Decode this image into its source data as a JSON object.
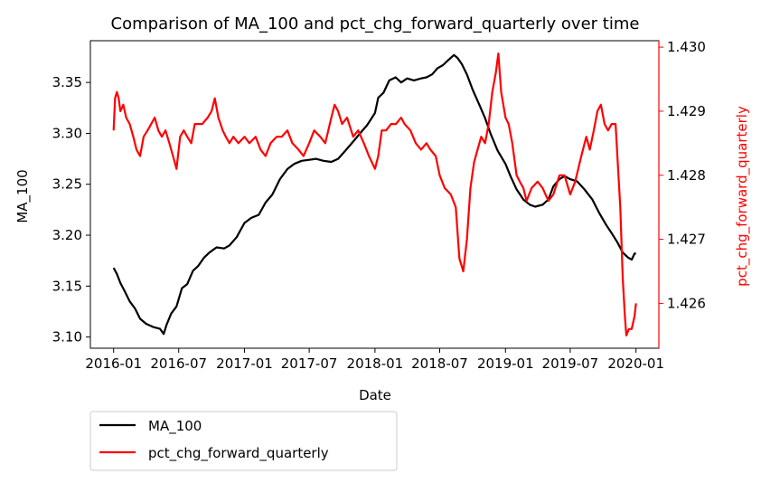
{
  "chart_data": {
    "type": "line",
    "title": "Comparison of MA_100 and pct_chg_forward_quarterly over time",
    "xlabel": "Date",
    "ylabel": "MA_100",
    "y2label": "pct_chg_forward_quarterly",
    "xlim": [
      "2015-10-28",
      "2020-03-05"
    ],
    "ylim": [
      3.089,
      3.391
    ],
    "y2lim": [
      1.4253,
      1.4301
    ],
    "x_ticks": [
      "2016-01",
      "2016-07",
      "2017-01",
      "2017-07",
      "2018-01",
      "2018-07",
      "2019-01",
      "2019-07",
      "2020-01"
    ],
    "y_ticks": [
      "3.10",
      "3.15",
      "3.20",
      "3.25",
      "3.30",
      "3.35"
    ],
    "y2_ticks": [
      "1.426",
      "1.427",
      "1.428",
      "1.429",
      "1.430"
    ],
    "legend_position": "below-left",
    "grid": false,
    "colors": {
      "ma_100": "#000000",
      "pct": "#ff0000"
    },
    "series": [
      {
        "name": "MA_100",
        "axis": "left",
        "color": "#000000",
        "points": [
          [
            "2016-01-01",
            3.168
          ],
          [
            "2016-01-10",
            3.162
          ],
          [
            "2016-01-20",
            3.153
          ],
          [
            "2016-02-01",
            3.145
          ],
          [
            "2016-02-15",
            3.135
          ],
          [
            "2016-03-01",
            3.128
          ],
          [
            "2016-03-15",
            3.118
          ],
          [
            "2016-04-01",
            3.113
          ],
          [
            "2016-04-20",
            3.11
          ],
          [
            "2016-05-10",
            3.108
          ],
          [
            "2016-05-20",
            3.103
          ],
          [
            "2016-05-28",
            3.112
          ],
          [
            "2016-06-10",
            3.123
          ],
          [
            "2016-06-25",
            3.13
          ],
          [
            "2016-07-10",
            3.148
          ],
          [
            "2016-07-25",
            3.152
          ],
          [
            "2016-08-10",
            3.165
          ],
          [
            "2016-08-25",
            3.17
          ],
          [
            "2016-09-10",
            3.178
          ],
          [
            "2016-09-25",
            3.183
          ],
          [
            "2016-10-15",
            3.188
          ],
          [
            "2016-11-05",
            3.187
          ],
          [
            "2016-11-20",
            3.19
          ],
          [
            "2016-12-10",
            3.198
          ],
          [
            "2017-01-01",
            3.212
          ],
          [
            "2017-01-20",
            3.217
          ],
          [
            "2017-02-10",
            3.22
          ],
          [
            "2017-03-01",
            3.232
          ],
          [
            "2017-03-20",
            3.24
          ],
          [
            "2017-04-10",
            3.255
          ],
          [
            "2017-05-01",
            3.265
          ],
          [
            "2017-05-20",
            3.27
          ],
          [
            "2017-06-10",
            3.273
          ],
          [
            "2017-07-01",
            3.274
          ],
          [
            "2017-07-20",
            3.275
          ],
          [
            "2017-08-10",
            3.273
          ],
          [
            "2017-09-01",
            3.272
          ],
          [
            "2017-09-20",
            3.275
          ],
          [
            "2017-10-10",
            3.283
          ],
          [
            "2017-11-01",
            3.292
          ],
          [
            "2017-11-20",
            3.3
          ],
          [
            "2017-12-10",
            3.308
          ],
          [
            "2018-01-01",
            3.32
          ],
          [
            "2018-01-10",
            3.335
          ],
          [
            "2018-01-25",
            3.34
          ],
          [
            "2018-02-10",
            3.352
          ],
          [
            "2018-02-28",
            3.355
          ],
          [
            "2018-03-15",
            3.35
          ],
          [
            "2018-04-01",
            3.354
          ],
          [
            "2018-04-20",
            3.352
          ],
          [
            "2018-05-10",
            3.354
          ],
          [
            "2018-05-25",
            3.355
          ],
          [
            "2018-06-10",
            3.358
          ],
          [
            "2018-06-25",
            3.364
          ],
          [
            "2018-07-10",
            3.367
          ],
          [
            "2018-07-25",
            3.372
          ],
          [
            "2018-08-10",
            3.377
          ],
          [
            "2018-08-20",
            3.374
          ],
          [
            "2018-09-01",
            3.368
          ],
          [
            "2018-09-15",
            3.358
          ],
          [
            "2018-10-01",
            3.343
          ],
          [
            "2018-10-20",
            3.328
          ],
          [
            "2018-11-05",
            3.315
          ],
          [
            "2018-11-20",
            3.3
          ],
          [
            "2018-12-10",
            3.283
          ],
          [
            "2019-01-01",
            3.27
          ],
          [
            "2019-01-15",
            3.258
          ],
          [
            "2019-02-01",
            3.245
          ],
          [
            "2019-02-20",
            3.235
          ],
          [
            "2019-03-10",
            3.23
          ],
          [
            "2019-03-25",
            3.228
          ],
          [
            "2019-04-15",
            3.23
          ],
          [
            "2019-05-01",
            3.235
          ],
          [
            "2019-05-15",
            3.248
          ],
          [
            "2019-06-01",
            3.255
          ],
          [
            "2019-06-15",
            3.258
          ],
          [
            "2019-07-01",
            3.255
          ],
          [
            "2019-07-20",
            3.253
          ],
          [
            "2019-08-10",
            3.245
          ],
          [
            "2019-09-01",
            3.235
          ],
          [
            "2019-09-20",
            3.222
          ],
          [
            "2019-10-10",
            3.21
          ],
          [
            "2019-10-25",
            3.202
          ],
          [
            "2019-11-10",
            3.193
          ],
          [
            "2019-11-25",
            3.183
          ],
          [
            "2019-12-10",
            3.178
          ],
          [
            "2019-12-20",
            3.176
          ],
          [
            "2019-12-28",
            3.182
          ],
          [
            "2020-01-01",
            3.182
          ]
        ]
      },
      {
        "name": "pct_chg_forward_quarterly",
        "axis": "right",
        "color": "#ff0000",
        "points": [
          [
            "2016-01-01",
            1.4287
          ],
          [
            "2016-01-05",
            1.4292
          ],
          [
            "2016-01-10",
            1.4293
          ],
          [
            "2016-01-15",
            1.4292
          ],
          [
            "2016-01-20",
            1.429
          ],
          [
            "2016-01-28",
            1.4291
          ],
          [
            "2016-02-05",
            1.4289
          ],
          [
            "2016-02-15",
            1.4288
          ],
          [
            "2016-02-25",
            1.4286
          ],
          [
            "2016-03-05",
            1.4284
          ],
          [
            "2016-03-15",
            1.4283
          ],
          [
            "2016-03-25",
            1.4286
          ],
          [
            "2016-04-05",
            1.4287
          ],
          [
            "2016-04-15",
            1.4288
          ],
          [
            "2016-04-25",
            1.4289
          ],
          [
            "2016-05-05",
            1.4287
          ],
          [
            "2016-05-15",
            1.4286
          ],
          [
            "2016-05-25",
            1.4287
          ],
          [
            "2016-06-05",
            1.4285
          ],
          [
            "2016-06-15",
            1.4283
          ],
          [
            "2016-06-25",
            1.4281
          ],
          [
            "2016-07-05",
            1.4286
          ],
          [
            "2016-07-15",
            1.4287
          ],
          [
            "2016-07-25",
            1.4286
          ],
          [
            "2016-08-05",
            1.4285
          ],
          [
            "2016-08-15",
            1.4288
          ],
          [
            "2016-08-25",
            1.4288
          ],
          [
            "2016-09-05",
            1.4288
          ],
          [
            "2016-09-20",
            1.4289
          ],
          [
            "2016-10-01",
            1.429
          ],
          [
            "2016-10-10",
            1.4292
          ],
          [
            "2016-10-20",
            1.4289
          ],
          [
            "2016-11-01",
            1.4287
          ],
          [
            "2016-11-10",
            1.4286
          ],
          [
            "2016-11-20",
            1.4285
          ],
          [
            "2016-12-01",
            1.4286
          ],
          [
            "2016-12-15",
            1.4285
          ],
          [
            "2017-01-01",
            1.4286
          ],
          [
            "2017-01-15",
            1.4285
          ],
          [
            "2017-02-01",
            1.4286
          ],
          [
            "2017-02-15",
            1.4284
          ],
          [
            "2017-03-01",
            1.4283
          ],
          [
            "2017-03-15",
            1.4285
          ],
          [
            "2017-04-01",
            1.4286
          ],
          [
            "2017-04-15",
            1.4286
          ],
          [
            "2017-05-01",
            1.4287
          ],
          [
            "2017-05-15",
            1.4285
          ],
          [
            "2017-06-01",
            1.4284
          ],
          [
            "2017-06-15",
            1.4283
          ],
          [
            "2017-07-01",
            1.4285
          ],
          [
            "2017-07-15",
            1.4287
          ],
          [
            "2017-08-01",
            1.4286
          ],
          [
            "2017-08-15",
            1.4285
          ],
          [
            "2017-09-01",
            1.4289
          ],
          [
            "2017-09-10",
            1.4291
          ],
          [
            "2017-09-20",
            1.429
          ],
          [
            "2017-10-01",
            1.4288
          ],
          [
            "2017-10-15",
            1.4289
          ],
          [
            "2017-11-01",
            1.4286
          ],
          [
            "2017-11-15",
            1.4287
          ],
          [
            "2017-12-01",
            1.4285
          ],
          [
            "2017-12-15",
            1.4283
          ],
          [
            "2018-01-01",
            1.4281
          ],
          [
            "2018-01-10",
            1.4283
          ],
          [
            "2018-01-20",
            1.4287
          ],
          [
            "2018-02-01",
            1.4287
          ],
          [
            "2018-02-15",
            1.4288
          ],
          [
            "2018-03-01",
            1.4288
          ],
          [
            "2018-03-15",
            1.4289
          ],
          [
            "2018-03-25",
            1.4288
          ],
          [
            "2018-04-10",
            1.4287
          ],
          [
            "2018-04-25",
            1.4285
          ],
          [
            "2018-05-10",
            1.4284
          ],
          [
            "2018-05-25",
            1.4285
          ],
          [
            "2018-06-05",
            1.4284
          ],
          [
            "2018-06-20",
            1.4283
          ],
          [
            "2018-07-01",
            1.428
          ],
          [
            "2018-07-15",
            1.4278
          ],
          [
            "2018-08-01",
            1.4277
          ],
          [
            "2018-08-15",
            1.4275
          ],
          [
            "2018-08-25",
            1.4267
          ],
          [
            "2018-09-05",
            1.4265
          ],
          [
            "2018-09-15",
            1.427
          ],
          [
            "2018-09-25",
            1.4278
          ],
          [
            "2018-10-05",
            1.4282
          ],
          [
            "2018-10-15",
            1.4284
          ],
          [
            "2018-10-25",
            1.4286
          ],
          [
            "2018-11-05",
            1.4285
          ],
          [
            "2018-11-15",
            1.4288
          ],
          [
            "2018-11-25",
            1.4293
          ],
          [
            "2018-12-05",
            1.4296
          ],
          [
            "2018-12-12",
            1.4299
          ],
          [
            "2018-12-20",
            1.4293
          ],
          [
            "2019-01-01",
            1.4289
          ],
          [
            "2019-01-10",
            1.4288
          ],
          [
            "2019-01-20",
            1.4285
          ],
          [
            "2019-02-01",
            1.428
          ],
          [
            "2019-02-10",
            1.4279
          ],
          [
            "2019-02-20",
            1.4278
          ],
          [
            "2019-03-01",
            1.4276
          ],
          [
            "2019-03-15",
            1.4278
          ],
          [
            "2019-04-01",
            1.4279
          ],
          [
            "2019-04-15",
            1.4278
          ],
          [
            "2019-05-01",
            1.4276
          ],
          [
            "2019-05-15",
            1.4277
          ],
          [
            "2019-06-01",
            1.428
          ],
          [
            "2019-06-15",
            1.428
          ],
          [
            "2019-07-01",
            1.4277
          ],
          [
            "2019-07-15",
            1.4279
          ],
          [
            "2019-08-01",
            1.4283
          ],
          [
            "2019-08-15",
            1.4286
          ],
          [
            "2019-08-25",
            1.4284
          ],
          [
            "2019-09-05",
            1.4287
          ],
          [
            "2019-09-15",
            1.429
          ],
          [
            "2019-09-25",
            1.4291
          ],
          [
            "2019-10-05",
            1.4288
          ],
          [
            "2019-10-15",
            1.4287
          ],
          [
            "2019-10-25",
            1.4288
          ],
          [
            "2019-11-05",
            1.4288
          ],
          [
            "2019-11-12",
            1.4281
          ],
          [
            "2019-11-18",
            1.4275
          ],
          [
            "2019-11-25",
            1.4264
          ],
          [
            "2019-12-01",
            1.4258
          ],
          [
            "2019-12-05",
            1.4255
          ],
          [
            "2019-12-12",
            1.4256
          ],
          [
            "2019-12-20",
            1.4256
          ],
          [
            "2019-12-28",
            1.4258
          ],
          [
            "2020-01-01",
            1.426
          ]
        ]
      }
    ]
  }
}
